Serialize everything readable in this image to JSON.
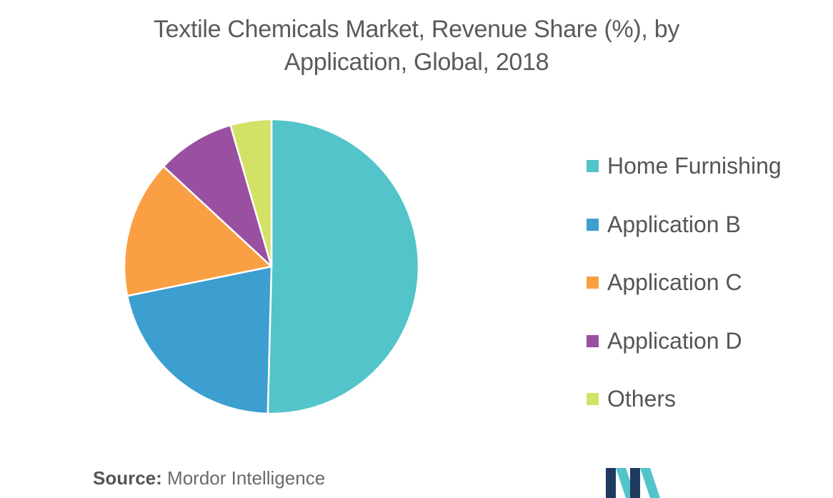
{
  "chart_data": {
    "type": "pie",
    "title_lines": [
      "Textile Chemicals Market, Revenue Share (%), by",
      "Application, Global, 2018"
    ],
    "series": [
      {
        "name": "Home Furnishing",
        "value": 50.4,
        "color": "#52C4CA"
      },
      {
        "name": "Application B",
        "value": 21.4,
        "color": "#3D9ED0"
      },
      {
        "name": "Application C",
        "value": 15.1,
        "color": "#FB9F45"
      },
      {
        "name": "Application D",
        "value": 8.6,
        "color": "#9A50A0"
      },
      {
        "name": "Others",
        "value": 4.5,
        "color": "#D3E267"
      }
    ],
    "legend_position": "right",
    "start_angle": "12 o'clock",
    "direction": "clockwise"
  },
  "source": {
    "label": "Source:",
    "text": "Mordor Intelligence"
  },
  "logo": {
    "icon": "mordor-intelligence-logo",
    "colors": [
      "#1E3A5F",
      "#52C4CA"
    ]
  }
}
